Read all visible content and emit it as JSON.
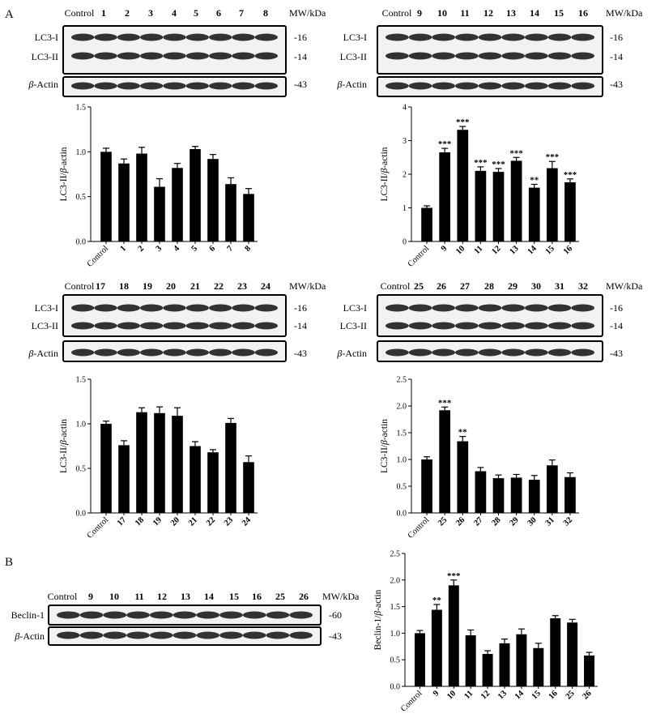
{
  "panel_labels": {
    "a": "A",
    "b": "B"
  },
  "blots": [
    {
      "lanes": [
        "Control",
        "1",
        "2",
        "3",
        "4",
        "5",
        "6",
        "7",
        "8"
      ],
      "mw_header": "MW/kDa",
      "rows": [
        {
          "labels": [
            "LC3-I",
            "LC3-II"
          ],
          "mw": [
            "-16",
            "-14"
          ]
        },
        {
          "labels": [
            "β-Actin"
          ],
          "mw": [
            "-43"
          ]
        }
      ]
    },
    {
      "lanes": [
        "Control",
        "9",
        "10",
        "11",
        "12",
        "13",
        "14",
        "15",
        "16"
      ],
      "mw_header": "MW/kDa",
      "rows": [
        {
          "labels": [
            "LC3-I",
            "LC3-II"
          ],
          "mw": [
            "-16",
            "-14"
          ]
        },
        {
          "labels": [
            "β-Actin"
          ],
          "mw": [
            "-43"
          ]
        }
      ]
    },
    {
      "lanes": [
        "Control",
        "17",
        "18",
        "19",
        "20",
        "21",
        "22",
        "23",
        "24"
      ],
      "mw_header": "MW/kDa",
      "rows": [
        {
          "labels": [
            "LC3-I",
            "LC3-II"
          ],
          "mw": [
            "-16",
            "-14"
          ]
        },
        {
          "labels": [
            "β-Actin"
          ],
          "mw": [
            "-43"
          ]
        }
      ]
    },
    {
      "lanes": [
        "Control",
        "25",
        "26",
        "27",
        "28",
        "29",
        "30",
        "31",
        "32"
      ],
      "mw_header": "MW/kDa",
      "rows": [
        {
          "labels": [
            "LC3-I",
            "LC3-II"
          ],
          "mw": [
            "-16",
            "-14"
          ]
        },
        {
          "labels": [
            "β-Actin"
          ],
          "mw": [
            "-43"
          ]
        }
      ]
    },
    {
      "lanes": [
        "Control",
        "9",
        "10",
        "11",
        "12",
        "13",
        "14",
        "15",
        "16",
        "25",
        "26"
      ],
      "mw_header": "MW/kDa",
      "rows": [
        {
          "labels": [
            "Beclin-1"
          ],
          "mw": [
            "-60"
          ]
        },
        {
          "labels": [
            "β-Actin"
          ],
          "mw": [
            "-43"
          ]
        }
      ]
    }
  ],
  "chart_data": [
    {
      "type": "bar",
      "ylabel": "LC3-II/β-actin",
      "categories": [
        "Control",
        "1",
        "2",
        "3",
        "4",
        "5",
        "6",
        "7",
        "8"
      ],
      "values": [
        1.0,
        0.87,
        0.98,
        0.61,
        0.82,
        1.03,
        0.92,
        0.64,
        0.53
      ],
      "errors": [
        0.04,
        0.05,
        0.07,
        0.09,
        0.05,
        0.03,
        0.05,
        0.07,
        0.06
      ],
      "significance": [
        "",
        "",
        "",
        "",
        "",
        "",
        "",
        "",
        ""
      ],
      "ylim": [
        0,
        1.5
      ],
      "yticks": [
        "0.0",
        "0.5",
        "1.0",
        "1.5"
      ],
      "grid": false,
      "legend": "none"
    },
    {
      "type": "bar",
      "ylabel": "LC3-II/β-actin",
      "categories": [
        "Control",
        "9",
        "10",
        "11",
        "12",
        "13",
        "14",
        "15",
        "16"
      ],
      "values": [
        1.0,
        2.65,
        3.32,
        2.1,
        2.07,
        2.4,
        1.6,
        2.18,
        1.76
      ],
      "errors": [
        0.06,
        0.12,
        0.1,
        0.12,
        0.1,
        0.1,
        0.1,
        0.2,
        0.1
      ],
      "significance": [
        "",
        "***",
        "***",
        "***",
        "***",
        "***",
        "**",
        "***",
        "***"
      ],
      "ylim": [
        0,
        4
      ],
      "yticks": [
        "0",
        "1",
        "2",
        "3",
        "4"
      ],
      "grid": false,
      "legend": "none"
    },
    {
      "type": "bar",
      "ylabel": "LC3-II/β-actin",
      "categories": [
        "Control",
        "17",
        "18",
        "19",
        "20",
        "21",
        "22",
        "23",
        "24"
      ],
      "values": [
        1.0,
        0.76,
        1.13,
        1.12,
        1.09,
        0.75,
        0.68,
        1.01,
        0.57
      ],
      "errors": [
        0.03,
        0.05,
        0.05,
        0.07,
        0.09,
        0.05,
        0.03,
        0.05,
        0.07
      ],
      "significance": [
        "",
        "",
        "",
        "",
        "",
        "",
        "",
        "",
        ""
      ],
      "ylim": [
        0,
        1.5
      ],
      "yticks": [
        "0.0",
        "0.5",
        "1.0",
        "1.5"
      ],
      "grid": false,
      "legend": "none"
    },
    {
      "type": "bar",
      "ylabel": "LC3-II/β-actin",
      "categories": [
        "Control",
        "25",
        "26",
        "27",
        "28",
        "29",
        "30",
        "31",
        "32"
      ],
      "values": [
        1.0,
        1.92,
        1.34,
        0.78,
        0.65,
        0.66,
        0.62,
        0.89,
        0.67
      ],
      "errors": [
        0.05,
        0.06,
        0.09,
        0.07,
        0.06,
        0.06,
        0.08,
        0.1,
        0.08
      ],
      "significance": [
        "",
        "***",
        "**",
        "",
        "",
        "",
        "",
        "",
        ""
      ],
      "ylim": [
        0,
        2.5
      ],
      "yticks": [
        "0.0",
        "0.5",
        "1.0",
        "1.5",
        "2.0",
        "2.5"
      ],
      "grid": false,
      "legend": "none"
    },
    {
      "type": "bar",
      "ylabel": "Beclin-1/β-actin",
      "categories": [
        "Control",
        "9",
        "10",
        "11",
        "12",
        "13",
        "14",
        "15",
        "16",
        "25",
        "26"
      ],
      "values": [
        1.0,
        1.44,
        1.9,
        0.96,
        0.61,
        0.81,
        0.98,
        0.72,
        1.28,
        1.2,
        0.58
      ],
      "errors": [
        0.05,
        0.1,
        0.1,
        0.1,
        0.06,
        0.08,
        0.1,
        0.09,
        0.05,
        0.06,
        0.06
      ],
      "significance": [
        "",
        "**",
        "***",
        "",
        "",
        "",
        "",
        "",
        "",
        "",
        ""
      ],
      "ylim": [
        0,
        2.5
      ],
      "yticks": [
        "0.0",
        "0.5",
        "1.0",
        "1.5",
        "2.0",
        "2.5"
      ],
      "grid": false,
      "legend": "none"
    }
  ]
}
